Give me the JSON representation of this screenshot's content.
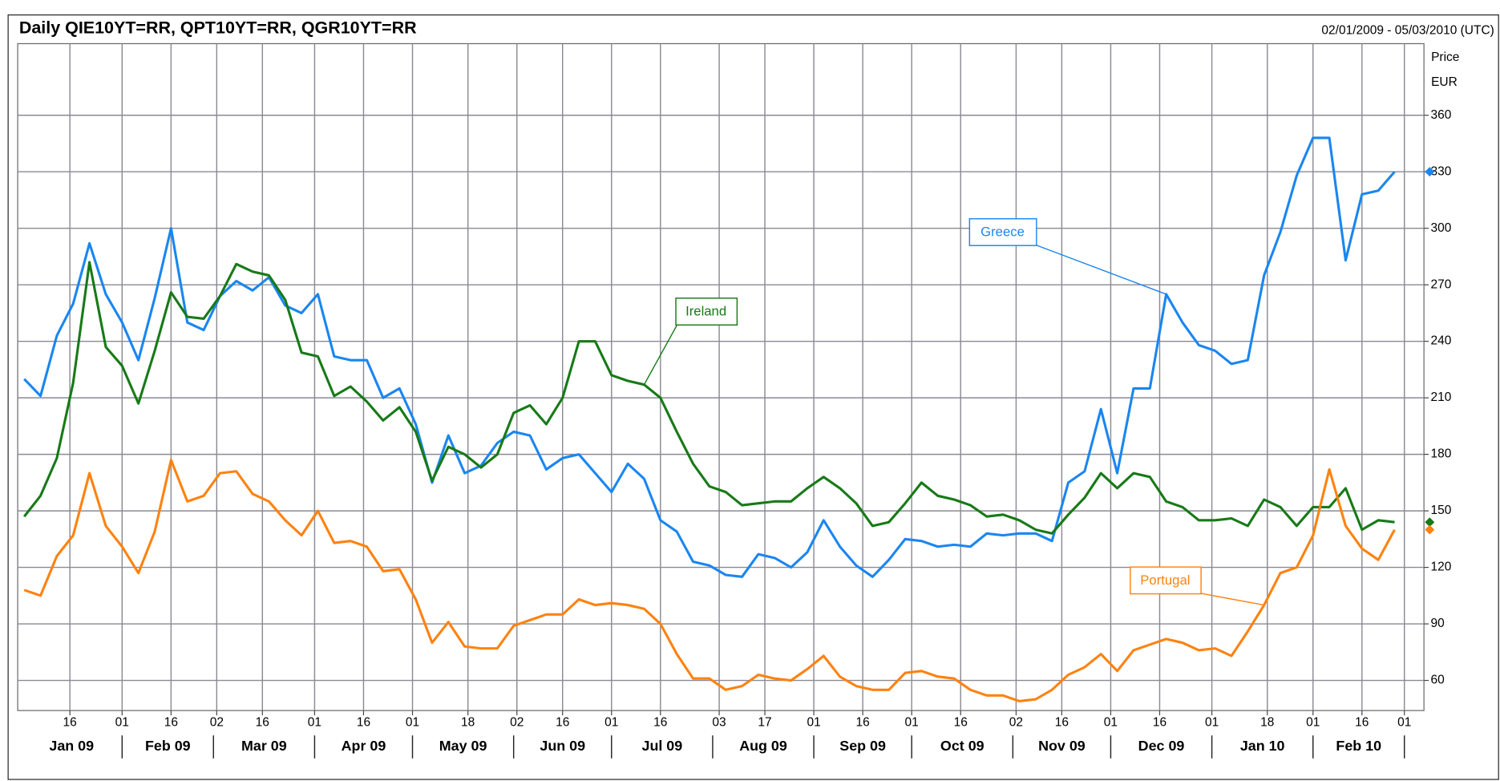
{
  "chart_data": {
    "type": "line",
    "title": "Daily QIE10YT=RR, QPT10YT=RR, QGR10YT=RR",
    "subtitle": "02/01/2009 - 05/03/2010 (UTC)",
    "y_label": "Price",
    "y_unit": "EUR",
    "x": [
      "2009-01-02",
      "2009-01-07",
      "2009-01-12",
      "2009-01-17",
      "2009-01-22",
      "2009-01-27",
      "2009-02-01",
      "2009-02-06",
      "2009-02-11",
      "2009-02-16",
      "2009-02-21",
      "2009-02-26",
      "2009-03-03",
      "2009-03-08",
      "2009-03-13",
      "2009-03-18",
      "2009-03-23",
      "2009-03-28",
      "2009-04-02",
      "2009-04-07",
      "2009-04-12",
      "2009-04-17",
      "2009-04-22",
      "2009-04-27",
      "2009-05-02",
      "2009-05-07",
      "2009-05-12",
      "2009-05-17",
      "2009-05-22",
      "2009-05-27",
      "2009-06-01",
      "2009-06-06",
      "2009-06-11",
      "2009-06-16",
      "2009-06-21",
      "2009-06-26",
      "2009-07-01",
      "2009-07-06",
      "2009-07-11",
      "2009-07-16",
      "2009-07-21",
      "2009-07-26",
      "2009-07-31",
      "2009-08-05",
      "2009-08-10",
      "2009-08-15",
      "2009-08-20",
      "2009-08-25",
      "2009-08-30",
      "2009-09-04",
      "2009-09-09",
      "2009-09-14",
      "2009-09-19",
      "2009-09-24",
      "2009-09-29",
      "2009-10-04",
      "2009-10-09",
      "2009-10-14",
      "2009-10-19",
      "2009-10-24",
      "2009-10-29",
      "2009-11-03",
      "2009-11-08",
      "2009-11-13",
      "2009-11-18",
      "2009-11-23",
      "2009-11-28",
      "2009-12-03",
      "2009-12-08",
      "2009-12-13",
      "2009-12-18",
      "2009-12-23",
      "2009-12-28",
      "2010-01-02",
      "2010-01-07",
      "2010-01-12",
      "2010-01-17",
      "2010-01-22",
      "2010-01-27",
      "2010-02-01",
      "2010-02-06",
      "2010-02-11",
      "2010-02-16",
      "2010-02-21",
      "2010-02-26"
    ],
    "series": [
      {
        "name": "Greece",
        "color": "#1a86f0",
        "values": [
          220,
          211,
          243,
          260,
          292,
          265,
          250,
          230,
          263,
          300,
          250,
          246,
          264,
          272,
          267,
          274,
          259,
          255,
          265,
          232,
          230,
          230,
          210,
          215,
          196,
          165,
          190,
          170,
          174,
          186,
          192,
          190,
          172,
          178,
          180,
          170,
          160,
          175,
          167,
          145,
          139,
          123,
          121,
          116,
          115,
          127,
          125,
          120,
          128,
          145,
          131,
          121,
          115,
          124,
          135,
          134,
          131,
          132,
          131,
          138,
          137,
          138,
          138,
          134,
          165,
          171,
          204,
          170,
          215,
          215,
          265,
          250,
          238,
          235,
          228,
          230,
          275,
          298,
          328,
          348,
          348,
          283,
          318,
          320,
          330
        ]
      },
      {
        "name": "Ireland",
        "color": "#177a17",
        "values": [
          147,
          158,
          178,
          218,
          282,
          237,
          227,
          207,
          235,
          266,
          253,
          252,
          264,
          281,
          277,
          275,
          262,
          234,
          232,
          211,
          216,
          208,
          198,
          205,
          192,
          166,
          184,
          180,
          173,
          180,
          202,
          206,
          196,
          210,
          240,
          240,
          222,
          219,
          217,
          210,
          192,
          175,
          163,
          160,
          153,
          154,
          155,
          155,
          162,
          168,
          162,
          154,
          142,
          144,
          154,
          165,
          158,
          156,
          153,
          147,
          148,
          145,
          140,
          138,
          148,
          157,
          170,
          162,
          170,
          168,
          155,
          152,
          145,
          145,
          146,
          142,
          156,
          152,
          142,
          152,
          152,
          162,
          140,
          145,
          144
        ]
      },
      {
        "name": "Portugal",
        "color": "#ff8210",
        "values": [
          108,
          105,
          126,
          137,
          170,
          142,
          131,
          117,
          139,
          177,
          155,
          158,
          170,
          171,
          159,
          155,
          145,
          137,
          150,
          133,
          134,
          131,
          118,
          119,
          103,
          80,
          91,
          78,
          77,
          77,
          89,
          92,
          95,
          95,
          103,
          100,
          101,
          100,
          98,
          90,
          74,
          61,
          61,
          55,
          57,
          63,
          61,
          60,
          66,
          73,
          62,
          57,
          55,
          55,
          64,
          65,
          62,
          61,
          55,
          52,
          52,
          49,
          50,
          55,
          63,
          67,
          74,
          65,
          76,
          79,
          82,
          80,
          76,
          77,
          73,
          86,
          100,
          117,
          120,
          137,
          172,
          142,
          130,
          124,
          140
        ]
      }
    ],
    "xlim": [
      "2008-12-31",
      "2010-03-07"
    ],
    "xticks": [
      {
        "value": "2009-01-16",
        "label": "16"
      },
      {
        "value": "2009-02-01",
        "label": "01"
      },
      {
        "value": "2009-02-16",
        "label": "16"
      },
      {
        "value": "2009-03-02",
        "label": "02"
      },
      {
        "value": "2009-03-16",
        "label": "16"
      },
      {
        "value": "2009-04-01",
        "label": "01"
      },
      {
        "value": "2009-04-16",
        "label": "16"
      },
      {
        "value": "2009-05-01",
        "label": "01"
      },
      {
        "value": "2009-05-18",
        "label": "18"
      },
      {
        "value": "2009-06-02",
        "label": "02"
      },
      {
        "value": "2009-06-16",
        "label": "16"
      },
      {
        "value": "2009-07-01",
        "label": "01"
      },
      {
        "value": "2009-07-16",
        "label": "16"
      },
      {
        "value": "2009-08-03",
        "label": "03"
      },
      {
        "value": "2009-08-17",
        "label": "17"
      },
      {
        "value": "2009-09-01",
        "label": "01"
      },
      {
        "value": "2009-09-16",
        "label": "16"
      },
      {
        "value": "2009-10-01",
        "label": "01"
      },
      {
        "value": "2009-10-16",
        "label": "16"
      },
      {
        "value": "2009-11-02",
        "label": "02"
      },
      {
        "value": "2009-11-16",
        "label": "16"
      },
      {
        "value": "2009-12-01",
        "label": "01"
      },
      {
        "value": "2009-12-16",
        "label": "16"
      },
      {
        "value": "2010-01-01",
        "label": "01"
      },
      {
        "value": "2010-01-18",
        "label": "18"
      },
      {
        "value": "2010-02-01",
        "label": "01"
      },
      {
        "value": "2010-02-16",
        "label": "16"
      },
      {
        "value": "2010-03-01",
        "label": "01"
      }
    ],
    "xticks_months": [
      {
        "value": "2009-01",
        "label": "Jan 09"
      },
      {
        "value": "2009-02",
        "label": "Feb 09"
      },
      {
        "value": "2009-03",
        "label": "Mar 09"
      },
      {
        "value": "2009-04",
        "label": "Apr 09"
      },
      {
        "value": "2009-05",
        "label": "May 09"
      },
      {
        "value": "2009-06",
        "label": "Jun 09"
      },
      {
        "value": "2009-07",
        "label": "Jul 09"
      },
      {
        "value": "2009-08",
        "label": "Aug 09"
      },
      {
        "value": "2009-09",
        "label": "Sep 09"
      },
      {
        "value": "2009-10",
        "label": "Oct 09"
      },
      {
        "value": "2009-11",
        "label": "Nov 09"
      },
      {
        "value": "2009-12",
        "label": "Dec 09"
      },
      {
        "value": "2010-01",
        "label": "Jan 10"
      },
      {
        "value": "2010-02",
        "label": "Feb 10"
      }
    ],
    "ylim": [
      44,
      398
    ],
    "yticks": [
      60,
      90,
      120,
      150,
      180,
      210,
      240,
      270,
      300,
      330,
      360
    ],
    "y_axis_side": "right",
    "grid": true,
    "last_value_markers": true
  }
}
